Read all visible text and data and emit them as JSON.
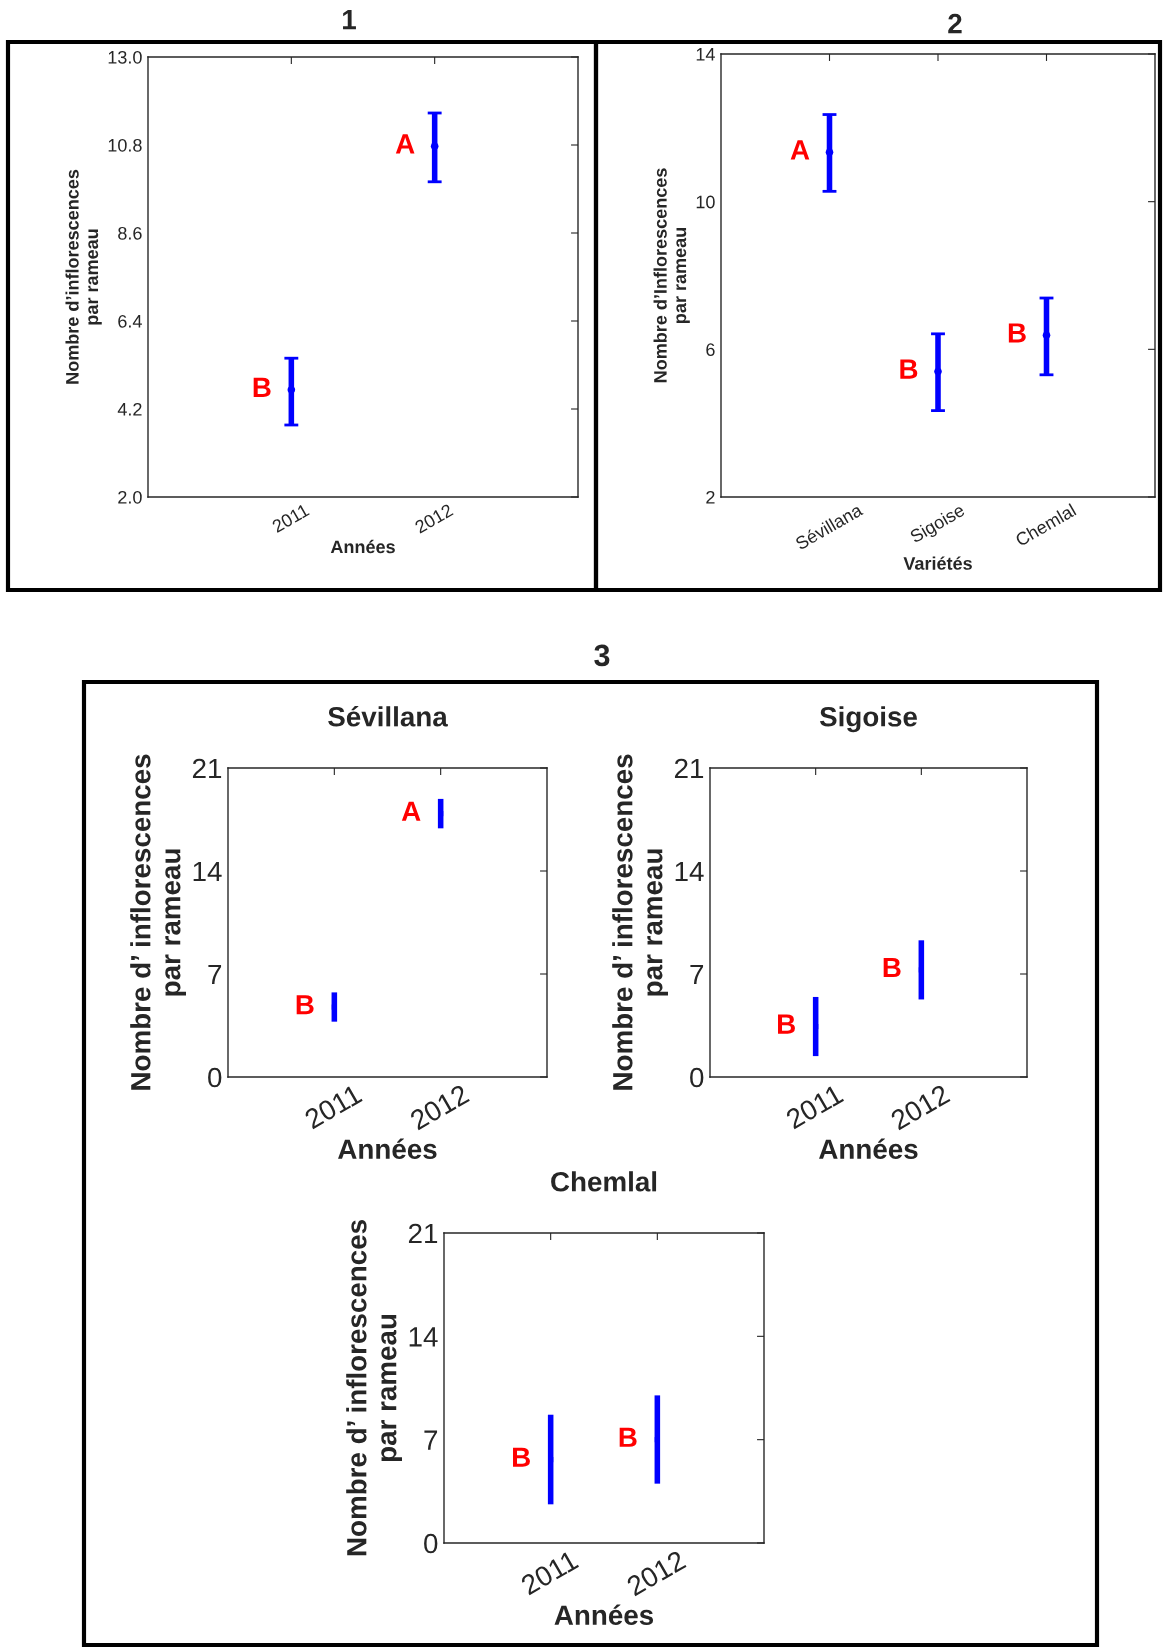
{
  "chart_data": [
    {
      "type": "scatter",
      "title": "1",
      "xlabel": "Années",
      "ylabel": "Nombre d’inflorescences\npar rameau",
      "categories": [
        "2011",
        "2012"
      ],
      "values": [
        4.68,
        10.77
      ],
      "errors": [
        [
          3.8,
          5.47
        ],
        [
          9.88,
          11.6
        ]
      ],
      "color": "#0000ff",
      "marker": "circle",
      "ylim": [
        2.0,
        13.0
      ],
      "yticks": [
        {
          "value": 2.0,
          "label": "2.0"
        },
        4.2,
        {
          "value": 6.4,
          "label": "6.4"
        },
        8.6,
        10.8,
        {
          "value": 13.0,
          "label": "13.0"
        }
      ],
      "annotations": [
        {
          "text": "B",
          "x": "2011",
          "y": 4.68
        },
        {
          "text": "A",
          "x": "2012",
          "y": 10.77
        }
      ]
    },
    {
      "type": "scatter",
      "title": "2",
      "xlabel": "Variétés",
      "ylabel": "Nombre d’Inflorescences\npar rameau",
      "categories": [
        "Sévillana",
        "Sigoise",
        "Chemlal"
      ],
      "values": [
        11.34,
        5.4,
        6.38
      ],
      "errors": [
        [
          10.28,
          12.36
        ],
        [
          4.34,
          6.42
        ],
        [
          5.31,
          7.39
        ]
      ],
      "color": "#0000ff",
      "marker": "circle",
      "ylim": [
        2,
        14
      ],
      "yticks": [
        2,
        6,
        10,
        14
      ],
      "annotations": [
        {
          "text": "A",
          "x": "Sévillana",
          "y": 11.34
        },
        {
          "text": "B",
          "x": "Sigoise",
          "y": 5.4
        },
        {
          "text": "B",
          "x": "Chemlal",
          "y": 6.38
        }
      ]
    },
    {
      "type": "other",
      "title": "3"
    },
    {
      "type": "scatter",
      "title": "Sévillana",
      "xlabel": "Années",
      "ylabel": "Nombre d’ inflorescences\npar rameau",
      "categories": [
        "2011",
        "2012"
      ],
      "values": [
        4.75,
        17.9
      ],
      "errors": [
        [
          3.76,
          5.75
        ],
        [
          16.9,
          18.9
        ]
      ],
      "color": "#0000ff",
      "marker": "square",
      "ylim": [
        0,
        21
      ],
      "yticks": [
        0,
        7,
        14,
        21
      ],
      "annotations": [
        {
          "text": "B",
          "x": "2011",
          "y": 4.75
        },
        {
          "text": "A",
          "x": "2012",
          "y": 17.9
        }
      ]
    },
    {
      "type": "scatter",
      "title": "Sigoise",
      "xlabel": "Années",
      "ylabel": "Nombre d’ inflorescences\npar rameau",
      "categories": [
        "2011",
        "2012"
      ],
      "values": [
        3.43,
        7.28
      ],
      "errors": [
        [
          1.42,
          5.44
        ],
        [
          5.27,
          9.29
        ]
      ],
      "color": "#0000ff",
      "marker": "square",
      "ylim": [
        0,
        21
      ],
      "yticks": [
        0,
        7,
        14,
        21
      ],
      "annotations": [
        {
          "text": "B",
          "x": "2011",
          "y": 3.43
        },
        {
          "text": "B",
          "x": "2012",
          "y": 7.28
        }
      ]
    },
    {
      "type": "scatter",
      "title": "Chemlal",
      "xlabel": "Années",
      "ylabel": "Nombre d’ inflorescences\npar rameau",
      "categories": [
        "2011",
        "2012"
      ],
      "values": [
        5.65,
        7.0
      ],
      "errors": [
        [
          2.62,
          8.69
        ],
        [
          4.02,
          10.0
        ]
      ],
      "color": "#0000ff",
      "marker": "square",
      "ylim": [
        0,
        21
      ],
      "yticks": [
        0,
        7,
        14,
        21
      ],
      "annotations": [
        {
          "text": "B",
          "x": "2011",
          "y": 5.65
        },
        {
          "text": "B",
          "x": "2012",
          "y": 7.0
        }
      ]
    }
  ]
}
